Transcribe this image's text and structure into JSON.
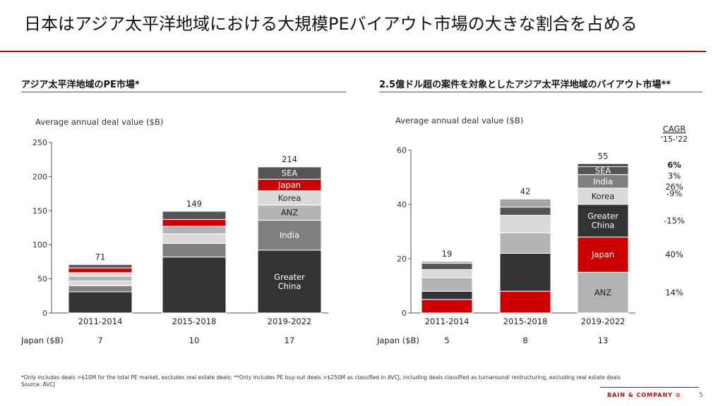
{
  "page": {
    "title": "日本はアジア太平洋地域における大規模PEバイアウト市場の大きな割合を占める",
    "page_number": "5",
    "logo_text": "BAIN & COMPANY",
    "footnote": "*Only includes deals >$10M  for the total PE  market,  excludes real estate deals;  **Only includes PE  buy-out deals >$250M  as classified in AVCJ,  including deals classified as turnaround/ restructuring, excluding real estate deals",
    "source": "Source: AVCJ",
    "colors": {
      "accent": "#cc0000",
      "dark": "#333333",
      "mid": "#808080",
      "light": "#b3b3b3",
      "pale": "#d9d9d9",
      "grey2": "#555555"
    }
  },
  "chart_data": [
    {
      "type": "bar",
      "stacked": true,
      "heading": "アジア太平洋地域のPE市場*",
      "ylabel": "Average annual deal value ($B)",
      "ylim": [
        0,
        250
      ],
      "yticks": [
        "0",
        "50",
        "100",
        "150",
        "200",
        "250"
      ],
      "categories": [
        "2011-2014",
        "2015-2018",
        "2019-2022"
      ],
      "totals": [
        "71",
        "149",
        "214"
      ],
      "row_label": "Japan ($B)",
      "row_values": [
        "7",
        "10",
        "17"
      ],
      "series": [
        {
          "name": "Greater China",
          "color": "#333333",
          "values": [
            31,
            82,
            92
          ]
        },
        {
          "name": "",
          "color": "#808080",
          "values": [
            9,
            20,
            0
          ]
        },
        {
          "name": "India",
          "color": "#808080",
          "values": [
            0,
            0,
            44
          ]
        },
        {
          "name": "",
          "color": "#d9d9d9",
          "values": [
            7,
            14,
            0
          ]
        },
        {
          "name": "ANZ",
          "color": "#b3b3b3",
          "values": [
            7,
            11,
            22
          ]
        },
        {
          "name": "Korea",
          "color": "#d9d9d9",
          "values": [
            5,
            0,
            21
          ]
        },
        {
          "name": "Japan",
          "color": "#cc0000",
          "values": [
            7,
            10,
            17
          ]
        },
        {
          "name": "SEA",
          "color": "#555555",
          "values": [
            5,
            12,
            18
          ]
        }
      ]
    },
    {
      "type": "bar",
      "stacked": true,
      "heading": "2.5億ドル超の案件を対象としたアジア太平洋地域のバイアウト市場**",
      "ylabel": "Average annual deal value ($B)",
      "ylim": [
        0,
        60
      ],
      "yticks": [
        "0",
        "20",
        "40",
        "60"
      ],
      "categories": [
        "2011-2014",
        "2015-2018",
        "2019-2022"
      ],
      "totals": [
        "19",
        "42",
        "55"
      ],
      "row_label": "Japan ($B)",
      "row_values": [
        "5",
        "8",
        "13"
      ],
      "cagr_header": "CAGR",
      "cagr_period": "'15-'22",
      "series": [
        {
          "name": "Japan",
          "color": "#cc0000",
          "values": [
            5,
            8,
            0
          ]
        },
        {
          "name": "",
          "color": "#333333",
          "values": [
            3,
            14,
            0
          ]
        },
        {
          "name": "ANZ",
          "color": "#b3b3b3",
          "values": [
            5,
            7.5,
            15
          ]
        },
        {
          "name": "Japan",
          "color": "#cc0000",
          "values": [
            0,
            0,
            13
          ]
        },
        {
          "name": "Greater China",
          "color": "#333333",
          "values": [
            0,
            0,
            12
          ]
        },
        {
          "name": "",
          "color": "#d9d9d9",
          "values": [
            3,
            6.5,
            0
          ]
        },
        {
          "name": "Korea",
          "color": "#d9d9d9",
          "values": [
            0,
            0,
            6
          ]
        },
        {
          "name": "India",
          "color": "#808080",
          "values": [
            0,
            0,
            5
          ]
        },
        {
          "name": "",
          "color": "#555555",
          "values": [
            2.3,
            3,
            0
          ]
        },
        {
          "name": "",
          "color": "#a6a6a6",
          "values": [
            0.7,
            3,
            0
          ]
        },
        {
          "name": "SEA",
          "color": "#555555",
          "values": [
            0,
            0,
            3
          ]
        },
        {
          "name": "",
          "color": "#333333",
          "values": [
            0,
            0,
            1
          ]
        }
      ],
      "cagr": [
        {
          "label": "6%",
          "bold": true,
          "value": 54.5
        },
        {
          "label": "3%",
          "bold": false,
          "value": 50.5
        },
        {
          "label": "26%",
          "bold": false,
          "value": 46.5
        },
        {
          "label": "-9%",
          "bold": false,
          "value": 44
        },
        {
          "label": "-15%",
          "bold": false,
          "value": 34
        },
        {
          "label": "40%",
          "bold": false,
          "value": 21.5
        },
        {
          "label": "14%",
          "bold": false,
          "value": 7.5
        }
      ]
    }
  ]
}
